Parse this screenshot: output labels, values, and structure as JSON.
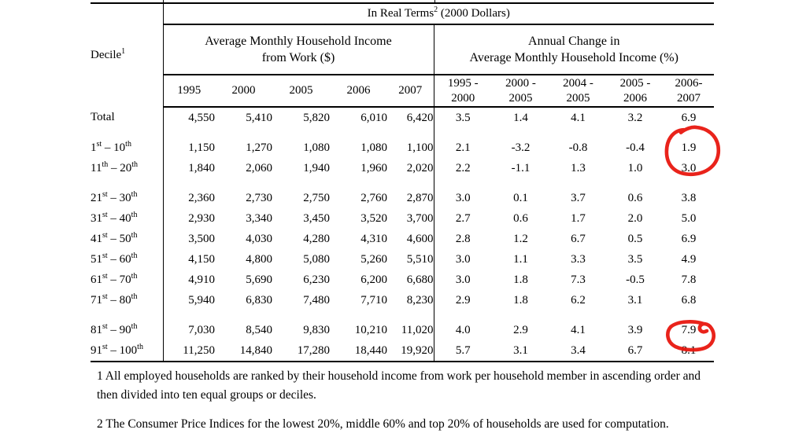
{
  "table": {
    "header": {
      "corner": "Decile^1^",
      "top": "In Real Terms^2^ (2000 Dollars)",
      "group_income": "Average Monthly Household Income\nfrom Work ($)",
      "group_change": "Annual Change in\nAverage Monthly Household Income (%)",
      "years": [
        "1995",
        "2000",
        "2005",
        "2006",
        "2007"
      ],
      "periods": [
        "1995 -\n2000",
        "2000 -\n2005",
        "2004 -\n2005",
        "2005 -\n2006",
        "2006-\n2007"
      ]
    },
    "rows": [
      {
        "label": "Total",
        "income": [
          "4,550",
          "5,410",
          "5,820",
          "6,010",
          "6,420"
        ],
        "change": [
          "3.5",
          "1.4",
          "4.1",
          "3.2",
          "6.9"
        ]
      },
      {
        "gap": true
      },
      {
        "label": "1^st^ – 10^th^",
        "income": [
          "1,150",
          "1,270",
          "1,080",
          "1,080",
          "1,100"
        ],
        "change": [
          "2.1",
          "-3.2",
          "-0.8",
          "-0.4",
          "1.9"
        ]
      },
      {
        "label": "11^th^ – 20^th^",
        "income": [
          "1,840",
          "2,060",
          "1,940",
          "1,960",
          "2,020"
        ],
        "change": [
          "2.2",
          "-1.1",
          "1.3",
          "1.0",
          "3.0"
        ]
      },
      {
        "gap": true
      },
      {
        "label": "21^st^ – 30^th^",
        "income": [
          "2,360",
          "2,730",
          "2,750",
          "2,760",
          "2,870"
        ],
        "change": [
          "3.0",
          "0.1",
          "3.7",
          "0.6",
          "3.8"
        ]
      },
      {
        "label": "31^st^ – 40^th^",
        "income": [
          "2,930",
          "3,340",
          "3,450",
          "3,520",
          "3,700"
        ],
        "change": [
          "2.7",
          "0.6",
          "1.7",
          "2.0",
          "5.0"
        ]
      },
      {
        "label": "41^st^ – 50^th^",
        "income": [
          "3,500",
          "4,030",
          "4,280",
          "4,310",
          "4,600"
        ],
        "change": [
          "2.8",
          "1.2",
          "6.7",
          "0.5",
          "6.9"
        ]
      },
      {
        "label": "51^st^ – 60^th^",
        "income": [
          "4,150",
          "4,800",
          "5,080",
          "5,260",
          "5,510"
        ],
        "change": [
          "3.0",
          "1.1",
          "3.3",
          "3.5",
          "4.9"
        ]
      },
      {
        "label": "61^st^ – 70^th^",
        "income": [
          "4,910",
          "5,690",
          "6,230",
          "6,200",
          "6,680"
        ],
        "change": [
          "3.0",
          "1.8",
          "7.3",
          "-0.5",
          "7.8"
        ]
      },
      {
        "label": "71^st^ – 80^th^",
        "income": [
          "5,940",
          "6,830",
          "7,480",
          "7,710",
          "8,230"
        ],
        "change": [
          "2.9",
          "1.8",
          "6.2",
          "3.1",
          "6.8"
        ]
      },
      {
        "gap": true
      },
      {
        "label": "81^st^ – 90^th^",
        "income": [
          "7,030",
          "8,540",
          "9,830",
          "10,210",
          "11,020"
        ],
        "change": [
          "4.0",
          "2.9",
          "4.1",
          "3.9",
          "7.9"
        ]
      },
      {
        "label": "91^st^ – 100^th^",
        "income": [
          "11,250",
          "14,840",
          "17,280",
          "18,440",
          "19,920"
        ],
        "change": [
          "5.7",
          "3.1",
          "3.4",
          "6.7",
          "8.1"
        ]
      }
    ]
  },
  "annotations": {
    "color": "#e8150d",
    "circles": [
      {
        "around": "values 1.9 and 3.0 in 2006-2007 column"
      },
      {
        "around": "value 8.1 in 2006-2007 column"
      }
    ]
  },
  "footnotes": [
    "1 All employed households are ranked by their household income from work per household member in ascending order and\nthen divided into ten equal groups or deciles.",
    "2 The Consumer Price Indices for the lowest 20%, middle 60% and top 20% of households are used for computation."
  ]
}
